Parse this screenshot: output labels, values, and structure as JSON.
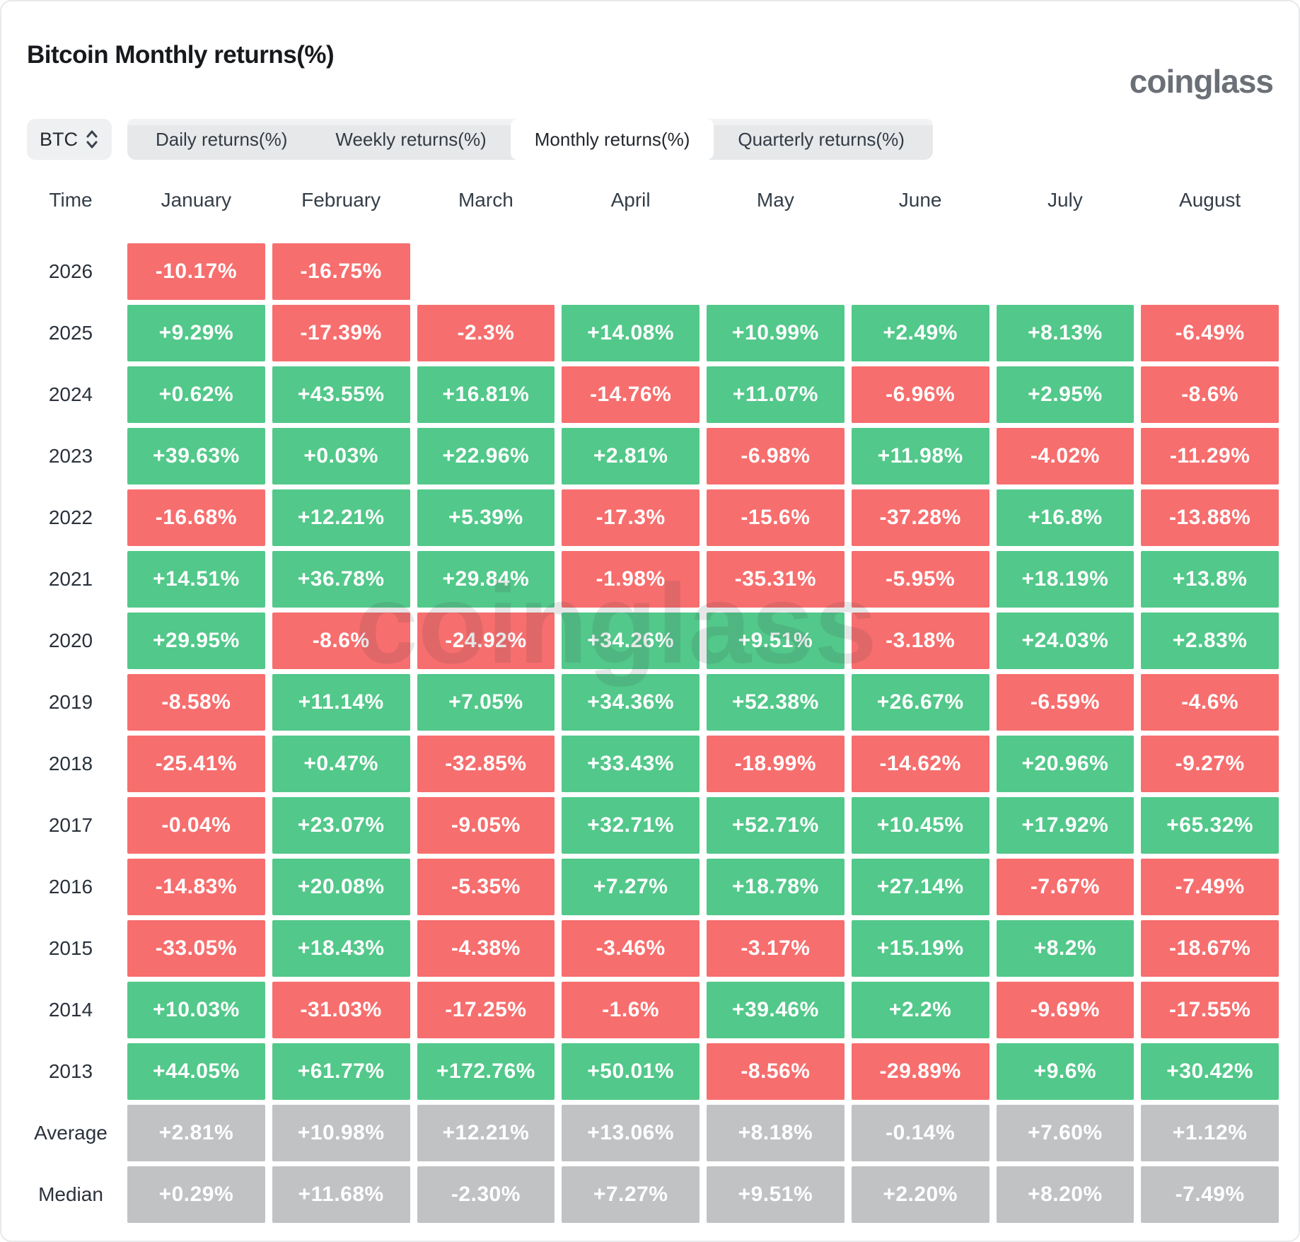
{
  "header": {
    "title": "Bitcoin Monthly returns(%)",
    "logo": "coinglass",
    "watermark": "coinglass"
  },
  "controls": {
    "symbol": "BTC",
    "tabs": [
      {
        "label": "Daily returns(%)",
        "active": false
      },
      {
        "label": "Weekly returns(%)",
        "active": false
      },
      {
        "label": "Monthly returns(%)",
        "active": true
      },
      {
        "label": "Quarterly returns(%)",
        "active": false
      }
    ]
  },
  "chart_data": {
    "type": "heatmap",
    "unit": "%",
    "row_header_label": "Time",
    "columns": [
      "January",
      "February",
      "March",
      "April",
      "May",
      "June",
      "July",
      "August"
    ],
    "colors": {
      "positive": "#52c88a",
      "negative": "#f76e6e",
      "summary": "#c1c2c4"
    },
    "rows": [
      {
        "label": "2026",
        "summary": false,
        "values": [
          "-10.17%",
          "-16.75%",
          "",
          "",
          "",
          "",
          "",
          ""
        ]
      },
      {
        "label": "2025",
        "summary": false,
        "values": [
          "+9.29%",
          "-17.39%",
          "-2.3%",
          "+14.08%",
          "+10.99%",
          "+2.49%",
          "+8.13%",
          "-6.49%"
        ]
      },
      {
        "label": "2024",
        "summary": false,
        "values": [
          "+0.62%",
          "+43.55%",
          "+16.81%",
          "-14.76%",
          "+11.07%",
          "-6.96%",
          "+2.95%",
          "-8.6%"
        ]
      },
      {
        "label": "2023",
        "summary": false,
        "values": [
          "+39.63%",
          "+0.03%",
          "+22.96%",
          "+2.81%",
          "-6.98%",
          "+11.98%",
          "-4.02%",
          "-11.29%"
        ]
      },
      {
        "label": "2022",
        "summary": false,
        "values": [
          "-16.68%",
          "+12.21%",
          "+5.39%",
          "-17.3%",
          "-15.6%",
          "-37.28%",
          "+16.8%",
          "-13.88%"
        ]
      },
      {
        "label": "2021",
        "summary": false,
        "values": [
          "+14.51%",
          "+36.78%",
          "+29.84%",
          "-1.98%",
          "-35.31%",
          "-5.95%",
          "+18.19%",
          "+13.8%"
        ]
      },
      {
        "label": "2020",
        "summary": false,
        "values": [
          "+29.95%",
          "-8.6%",
          "-24.92%",
          "+34.26%",
          "+9.51%",
          "-3.18%",
          "+24.03%",
          "+2.83%"
        ]
      },
      {
        "label": "2019",
        "summary": false,
        "values": [
          "-8.58%",
          "+11.14%",
          "+7.05%",
          "+34.36%",
          "+52.38%",
          "+26.67%",
          "-6.59%",
          "-4.6%"
        ]
      },
      {
        "label": "2018",
        "summary": false,
        "values": [
          "-25.41%",
          "+0.47%",
          "-32.85%",
          "+33.43%",
          "-18.99%",
          "-14.62%",
          "+20.96%",
          "-9.27%"
        ]
      },
      {
        "label": "2017",
        "summary": false,
        "values": [
          "-0.04%",
          "+23.07%",
          "-9.05%",
          "+32.71%",
          "+52.71%",
          "+10.45%",
          "+17.92%",
          "+65.32%"
        ]
      },
      {
        "label": "2016",
        "summary": false,
        "values": [
          "-14.83%",
          "+20.08%",
          "-5.35%",
          "+7.27%",
          "+18.78%",
          "+27.14%",
          "-7.67%",
          "-7.49%"
        ]
      },
      {
        "label": "2015",
        "summary": false,
        "values": [
          "-33.05%",
          "+18.43%",
          "-4.38%",
          "-3.46%",
          "-3.17%",
          "+15.19%",
          "+8.2%",
          "-18.67%"
        ]
      },
      {
        "label": "2014",
        "summary": false,
        "values": [
          "+10.03%",
          "-31.03%",
          "-17.25%",
          "-1.6%",
          "+39.46%",
          "+2.2%",
          "-9.69%",
          "-17.55%"
        ]
      },
      {
        "label": "2013",
        "summary": false,
        "values": [
          "+44.05%",
          "+61.77%",
          "+172.76%",
          "+50.01%",
          "-8.56%",
          "-29.89%",
          "+9.6%",
          "+30.42%"
        ]
      },
      {
        "label": "Average",
        "summary": true,
        "values": [
          "+2.81%",
          "+10.98%",
          "+12.21%",
          "+13.06%",
          "+8.18%",
          "-0.14%",
          "+7.60%",
          "+1.12%"
        ]
      },
      {
        "label": "Median",
        "summary": true,
        "values": [
          "+0.29%",
          "+11.68%",
          "-2.30%",
          "+7.27%",
          "+9.51%",
          "+2.20%",
          "+8.20%",
          "-7.49%"
        ]
      }
    ]
  }
}
